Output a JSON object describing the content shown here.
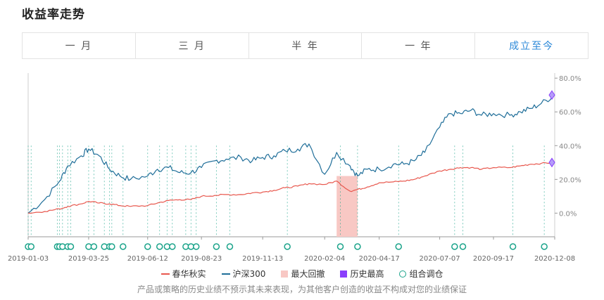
{
  "page": {
    "title": "收益率走势"
  },
  "tabs": [
    {
      "label": "一 月",
      "active": false
    },
    {
      "label": "三 月",
      "active": false
    },
    {
      "label": "半 年",
      "active": false
    },
    {
      "label": "一 年",
      "active": false
    },
    {
      "label": "成立至今",
      "active": true
    }
  ],
  "legend": {
    "strategy": "春华秋实",
    "benchmark": "沪深300",
    "max_drawdown": "最大回撤",
    "all_time_high": "历史最高",
    "rebalance": "组合调仓"
  },
  "disclaimer": "产品或策略的历史业绩不预示其未来表现，为其他客户创造的收益不构成对您的业绩保证",
  "colors": {
    "strategy": "#e8584e",
    "benchmark": "#1f6e99",
    "drawdown": "#f8c8c4",
    "high": "#8a3ffc",
    "rebalance": "#1aa38a",
    "active_tab": "#2b88d8"
  },
  "chart_data": {
    "type": "line",
    "x_ticks": [
      "2019-01-03",
      "2019-03-25",
      "2019-06-12",
      "2019-08-23",
      "2019-11-13",
      "2020-02-04",
      "2020-04-17",
      "2020-07-07",
      "2020-09-17",
      "2020-12-08"
    ],
    "y_ticks": [
      "0.0%",
      "20.0%",
      "40.0%",
      "60.0%",
      "80.0%"
    ],
    "ylim": [
      -14,
      83
    ],
    "x": [
      "2019-01-03",
      "2019-01-25",
      "2019-02-14",
      "2019-02-25",
      "2019-03-15",
      "2019-03-25",
      "2019-04-08",
      "2019-04-22",
      "2019-05-06",
      "2019-05-20",
      "2019-06-12",
      "2019-06-25",
      "2019-07-10",
      "2019-07-25",
      "2019-08-09",
      "2019-08-23",
      "2019-09-10",
      "2019-09-25",
      "2019-10-15",
      "2019-10-30",
      "2019-11-13",
      "2019-11-28",
      "2019-12-13",
      "2019-12-30",
      "2020-01-14",
      "2020-02-04",
      "2020-02-20",
      "2020-03-09",
      "2020-03-19",
      "2020-04-01",
      "2020-04-17",
      "2020-05-06",
      "2020-05-20",
      "2020-06-03",
      "2020-06-17",
      "2020-07-07",
      "2020-07-21",
      "2020-08-04",
      "2020-08-18",
      "2020-09-01",
      "2020-09-17",
      "2020-10-09",
      "2020-10-23",
      "2020-11-06",
      "2020-11-20",
      "2020-12-08"
    ],
    "series": [
      {
        "name": "沪深300",
        "values": [
          0,
          8,
          19,
          28,
          34,
          38,
          34,
          26,
          22,
          20,
          22,
          26,
          27,
          24,
          24,
          27,
          31,
          32,
          33,
          31,
          33,
          34,
          37,
          38,
          41,
          23,
          36,
          28,
          22,
          26,
          26,
          29,
          29,
          31,
          36,
          51,
          59,
          59,
          61,
          58,
          59,
          58,
          60,
          62,
          65,
          70
        ]
      },
      {
        "name": "春华秋实",
        "values": [
          0,
          1,
          2.5,
          4,
          5.5,
          7,
          6,
          5.5,
          4.5,
          4,
          4.5,
          6,
          7.5,
          8,
          8,
          10,
          10.5,
          11,
          11,
          12,
          12.5,
          13.5,
          15,
          16,
          17.5,
          17,
          19,
          13,
          14,
          15.5,
          18,
          18.5,
          19,
          20,
          22,
          25,
          26,
          27,
          27,
          26,
          27,
          27,
          28,
          29,
          29.5,
          30
        ]
      }
    ],
    "drawdown_range": [
      "2020-02-20",
      "2020-03-19"
    ],
    "all_time_high_points": [
      {
        "x": "2020-12-08",
        "y": 70
      },
      {
        "x": "2020-12-08",
        "y": 30
      }
    ],
    "rebalance_dates": [
      "2019-01-03",
      "2019-01-07",
      "2019-02-11",
      "2019-02-14",
      "2019-02-18",
      "2019-02-25",
      "2019-03-01",
      "2019-03-25",
      "2019-04-01",
      "2019-04-15",
      "2019-04-22",
      "2019-04-25",
      "2019-05-10",
      "2019-06-12",
      "2019-06-28",
      "2019-07-08",
      "2019-07-15",
      "2019-08-02",
      "2019-08-09",
      "2019-08-16",
      "2019-09-12",
      "2019-09-30",
      "2019-12-16",
      "2020-02-25",
      "2020-03-19",
      "2020-05-13",
      "2020-07-27",
      "2020-08-07",
      "2020-10-13",
      "2020-11-24"
    ]
  }
}
